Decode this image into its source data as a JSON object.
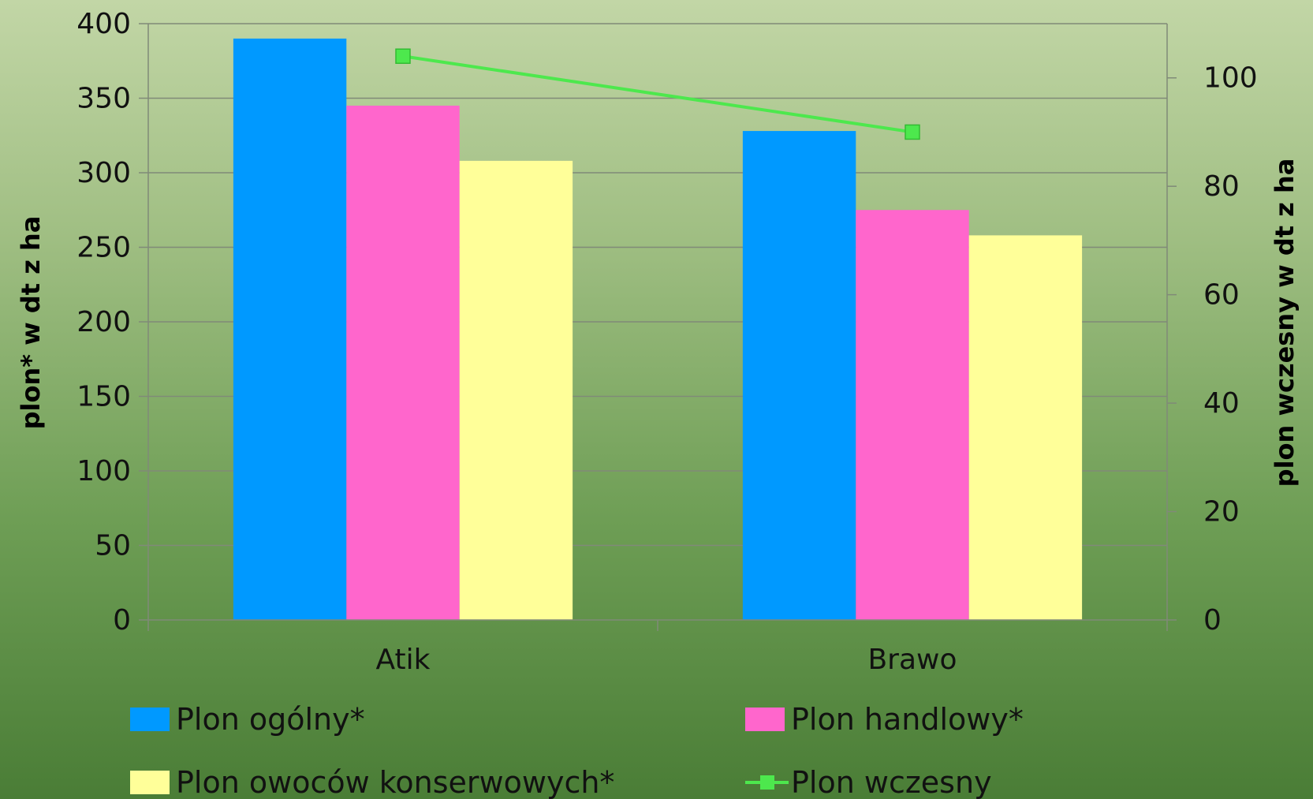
{
  "chart_data": {
    "type": "bar",
    "categories": [
      "Atik",
      "Brawo"
    ],
    "series": [
      {
        "name": "Plon ogólny*",
        "values": [
          390,
          328
        ],
        "color": "#0099ff",
        "axis": "left"
      },
      {
        "name": "Plon handlowy*",
        "values": [
          345,
          275
        ],
        "color": "#ff66cc",
        "axis": "left"
      },
      {
        "name": "Plon owoców konserwowych*",
        "values": [
          308,
          258
        ],
        "color": "#ffff99",
        "axis": "left"
      }
    ],
    "line_series": [
      {
        "name": "Plon wczesny",
        "values": [
          104,
          90
        ],
        "color": "#4de84d",
        "axis": "right",
        "marker": "square"
      }
    ],
    "ylabel": "plon*  w dt z ha",
    "y2label": "plon wczesny w dt z ha",
    "ylim": [
      0,
      400
    ],
    "y2lim": [
      0,
      110
    ],
    "yticks": [
      0,
      50,
      100,
      150,
      200,
      250,
      300,
      350,
      400
    ],
    "y2ticks": [
      0,
      20,
      40,
      60,
      80,
      100
    ],
    "grid": true,
    "legend_position": "bottom"
  }
}
